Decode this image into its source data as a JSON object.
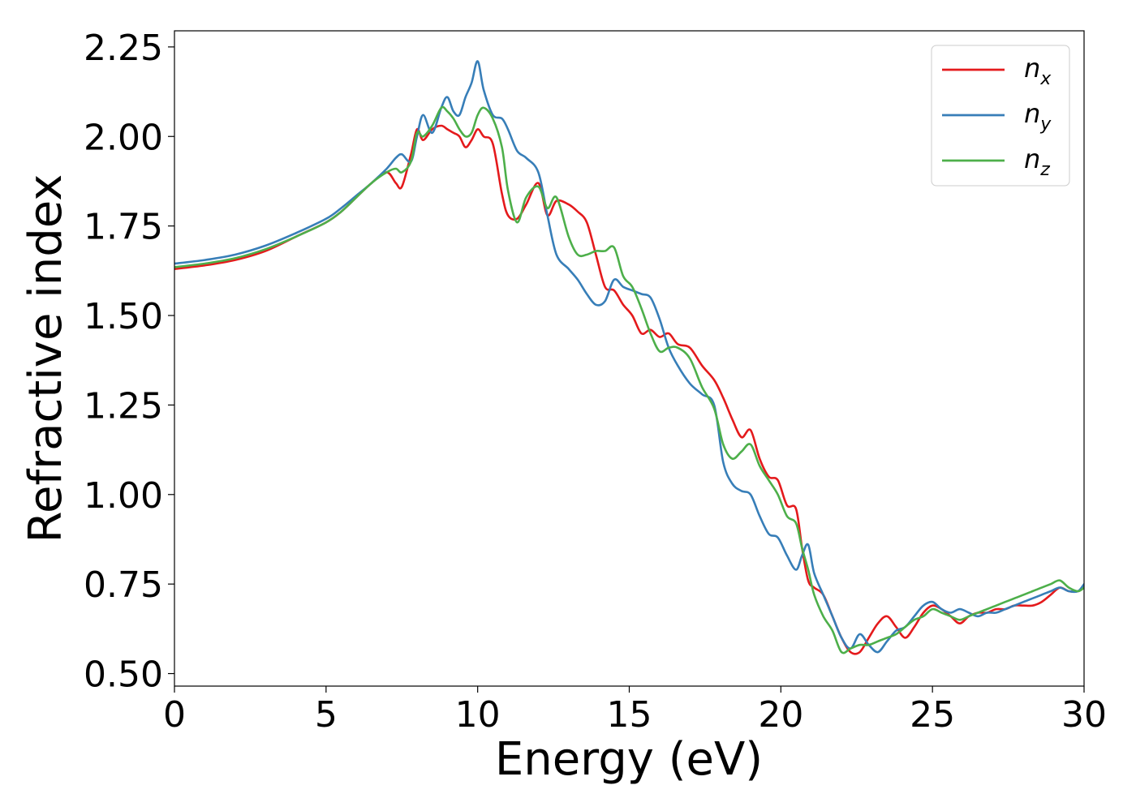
{
  "chart_data": {
    "type": "line",
    "xlabel": "Energy (eV)",
    "ylabel": "Refractive index",
    "xlim": [
      0,
      30
    ],
    "ylim": [
      0.465,
      2.295
    ],
    "x_ticks": [
      0,
      5,
      10,
      15,
      20,
      25,
      30
    ],
    "x_tick_labels": [
      "0",
      "5",
      "10",
      "15",
      "20",
      "25",
      "30"
    ],
    "y_ticks": [
      0.5,
      0.75,
      1.0,
      1.25,
      1.5,
      1.75,
      2.0,
      2.25
    ],
    "y_tick_labels": [
      "0.50",
      "0.75",
      "1.00",
      "1.25",
      "1.50",
      "1.75",
      "2.00",
      "2.25"
    ],
    "grid": false,
    "legend_position": "top-right",
    "series": [
      {
        "name": "n_x",
        "legend_base": "n",
        "legend_sub": "x",
        "color": "#e41a1c",
        "x": [
          0,
          1,
          2,
          3,
          4,
          5,
          5.5,
          6,
          6.5,
          7,
          7.3,
          7.5,
          7.8,
          8,
          8.2,
          8.5,
          8.8,
          9,
          9.2,
          9.4,
          9.6,
          9.8,
          10,
          10.2,
          10.5,
          10.8,
          11,
          11.3,
          11.6,
          12,
          12.3,
          12.6,
          13,
          13.3,
          13.6,
          13.9,
          14.2,
          14.5,
          14.8,
          15.1,
          15.4,
          15.7,
          16,
          16.3,
          16.6,
          17,
          17.4,
          17.8,
          18.1,
          18.4,
          18.7,
          19,
          19.3,
          19.6,
          19.9,
          20.2,
          20.5,
          20.7,
          20.9,
          21.1,
          21.4,
          21.7,
          22,
          22.3,
          22.6,
          22.9,
          23.2,
          23.5,
          23.8,
          24.1,
          24.4,
          24.7,
          25,
          25.3,
          25.6,
          25.9,
          26.2,
          26.5,
          26.8,
          27.1,
          27.4,
          27.7,
          28,
          28.3,
          28.6,
          28.9,
          29.2,
          29.5,
          29.8,
          30
        ],
        "y": [
          1.63,
          1.64,
          1.655,
          1.68,
          1.72,
          1.76,
          1.79,
          1.83,
          1.87,
          1.9,
          1.87,
          1.86,
          1.95,
          2.02,
          1.99,
          2.02,
          2.03,
          2.02,
          2.01,
          2.0,
          1.97,
          1.99,
          2.02,
          2.0,
          1.98,
          1.84,
          1.78,
          1.77,
          1.81,
          1.87,
          1.78,
          1.82,
          1.81,
          1.79,
          1.76,
          1.67,
          1.58,
          1.57,
          1.53,
          1.5,
          1.45,
          1.46,
          1.44,
          1.45,
          1.42,
          1.41,
          1.36,
          1.32,
          1.27,
          1.21,
          1.16,
          1.18,
          1.1,
          1.05,
          1.04,
          0.97,
          0.96,
          0.85,
          0.76,
          0.74,
          0.72,
          0.66,
          0.6,
          0.56,
          0.56,
          0.6,
          0.64,
          0.66,
          0.63,
          0.6,
          0.63,
          0.67,
          0.69,
          0.68,
          0.66,
          0.64,
          0.66,
          0.67,
          0.67,
          0.68,
          0.68,
          0.69,
          0.69,
          0.69,
          0.7,
          0.72,
          0.74,
          0.73,
          0.73,
          0.74
        ]
      },
      {
        "name": "n_y",
        "legend_base": "n",
        "legend_sub": "y",
        "color": "#377eb8",
        "x": [
          0,
          1,
          2,
          3,
          4,
          5,
          5.5,
          6,
          6.5,
          7,
          7.3,
          7.5,
          7.8,
          8,
          8.2,
          8.5,
          8.8,
          9,
          9.2,
          9.4,
          9.6,
          9.8,
          10,
          10.2,
          10.5,
          10.8,
          11,
          11.3,
          11.6,
          12,
          12.3,
          12.6,
          13,
          13.3,
          13.6,
          13.9,
          14.2,
          14.5,
          14.8,
          15.1,
          15.4,
          15.7,
          16,
          16.3,
          16.6,
          17,
          17.4,
          17.8,
          18.1,
          18.4,
          18.7,
          19,
          19.3,
          19.6,
          19.9,
          20.2,
          20.5,
          20.7,
          20.9,
          21.1,
          21.4,
          21.7,
          22,
          22.3,
          22.6,
          22.9,
          23.2,
          23.5,
          23.8,
          24.1,
          24.4,
          24.7,
          25,
          25.3,
          25.6,
          25.9,
          26.2,
          26.5,
          26.8,
          27.1,
          27.4,
          27.7,
          28,
          28.3,
          28.6,
          28.9,
          29.2,
          29.5,
          29.8,
          30
        ],
        "y": [
          1.645,
          1.655,
          1.67,
          1.695,
          1.73,
          1.77,
          1.8,
          1.835,
          1.87,
          1.91,
          1.94,
          1.95,
          1.93,
          2.0,
          2.06,
          2.01,
          2.08,
          2.11,
          2.07,
          2.06,
          2.11,
          2.15,
          2.21,
          2.13,
          2.06,
          2.05,
          2.02,
          1.96,
          1.94,
          1.9,
          1.78,
          1.67,
          1.63,
          1.6,
          1.56,
          1.53,
          1.54,
          1.6,
          1.58,
          1.57,
          1.56,
          1.55,
          1.49,
          1.41,
          1.36,
          1.31,
          1.28,
          1.25,
          1.09,
          1.03,
          1.01,
          1.0,
          0.94,
          0.89,
          0.88,
          0.83,
          0.79,
          0.83,
          0.86,
          0.78,
          0.72,
          0.66,
          0.6,
          0.57,
          0.61,
          0.58,
          0.56,
          0.59,
          0.62,
          0.63,
          0.66,
          0.69,
          0.7,
          0.68,
          0.67,
          0.68,
          0.67,
          0.66,
          0.67,
          0.67,
          0.68,
          0.69,
          0.7,
          0.71,
          0.72,
          0.73,
          0.74,
          0.73,
          0.73,
          0.75
        ]
      },
      {
        "name": "n_z",
        "legend_base": "n",
        "legend_sub": "z",
        "color": "#4daf4a",
        "x": [
          0,
          1,
          2,
          3,
          4,
          5,
          5.5,
          6,
          6.5,
          7,
          7.3,
          7.5,
          7.8,
          8,
          8.2,
          8.5,
          8.8,
          9,
          9.2,
          9.4,
          9.6,
          9.8,
          10,
          10.2,
          10.5,
          10.8,
          11,
          11.3,
          11.6,
          12,
          12.3,
          12.6,
          13,
          13.3,
          13.6,
          13.9,
          14.2,
          14.5,
          14.8,
          15.1,
          15.4,
          15.7,
          16,
          16.3,
          16.6,
          17,
          17.4,
          17.8,
          18.1,
          18.4,
          18.7,
          19,
          19.3,
          19.6,
          19.9,
          20.2,
          20.5,
          20.7,
          20.9,
          21.1,
          21.4,
          21.7,
          22,
          22.3,
          22.6,
          22.9,
          23.2,
          23.5,
          23.8,
          24.1,
          24.4,
          24.7,
          25,
          25.3,
          25.6,
          25.9,
          26.2,
          26.5,
          26.8,
          27.1,
          27.4,
          27.7,
          28,
          28.3,
          28.6,
          28.9,
          29.2,
          29.5,
          29.8,
          30
        ],
        "y": [
          1.635,
          1.645,
          1.66,
          1.685,
          1.72,
          1.76,
          1.79,
          1.83,
          1.87,
          1.9,
          1.91,
          1.9,
          1.93,
          2.01,
          2.0,
          2.03,
          2.08,
          2.07,
          2.05,
          2.02,
          2.0,
          2.01,
          2.06,
          2.08,
          2.05,
          1.97,
          1.85,
          1.76,
          1.83,
          1.86,
          1.8,
          1.83,
          1.72,
          1.67,
          1.67,
          1.68,
          1.68,
          1.69,
          1.61,
          1.58,
          1.52,
          1.45,
          1.4,
          1.41,
          1.41,
          1.38,
          1.3,
          1.24,
          1.14,
          1.1,
          1.12,
          1.14,
          1.08,
          1.04,
          1.0,
          0.94,
          0.92,
          0.85,
          0.79,
          0.72,
          0.66,
          0.62,
          0.56,
          0.57,
          0.58,
          0.58,
          0.59,
          0.6,
          0.61,
          0.63,
          0.65,
          0.66,
          0.68,
          0.67,
          0.66,
          0.65,
          0.66,
          0.67,
          0.68,
          0.69,
          0.7,
          0.71,
          0.72,
          0.73,
          0.74,
          0.75,
          0.76,
          0.74,
          0.73,
          0.74
        ]
      }
    ]
  }
}
